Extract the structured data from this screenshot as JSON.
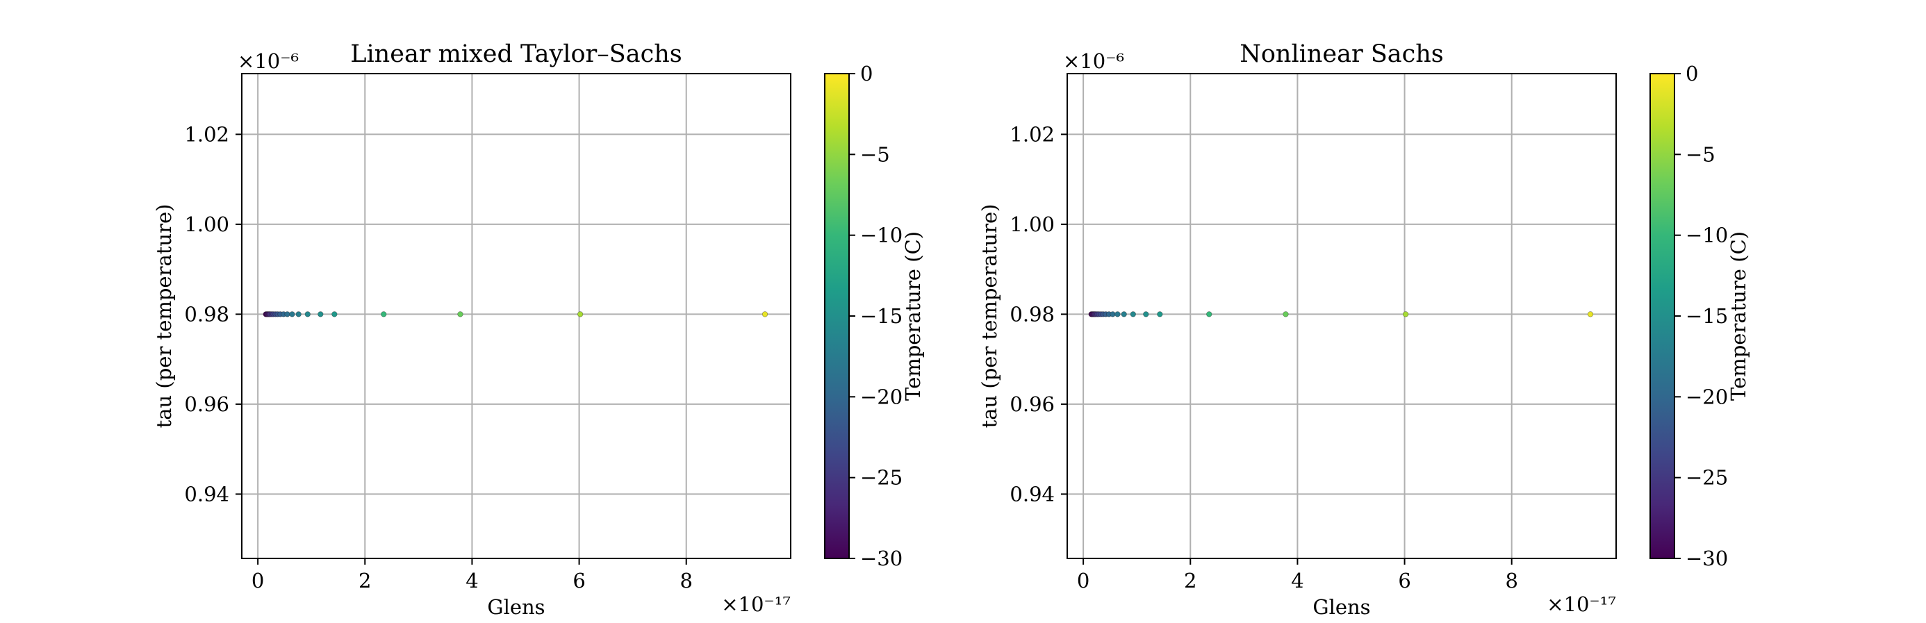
{
  "colormap": {
    "name": "viridis",
    "stops": [
      "#440154",
      "#482878",
      "#3e4989",
      "#31688e",
      "#26828e",
      "#1f9e89",
      "#35b779",
      "#6ece58",
      "#b5de2b",
      "#fde725"
    ]
  },
  "chart_data": [
    {
      "type": "scatter",
      "title": "Linear mixed Taylor–Sachs",
      "xlabel": "Glens",
      "ylabel": "tau (per temperature)",
      "x_offset_label": "×10⁻¹⁷",
      "y_offset_label": "×10⁻⁶",
      "xlim": [
        -0.3,
        9.95
      ],
      "ylim": [
        0.9257,
        1.0335
      ],
      "xticks": [
        0,
        2,
        4,
        6,
        8
      ],
      "xtick_labels": [
        "0",
        "2",
        "4",
        "6",
        "8"
      ],
      "yticks": [
        0.94,
        0.96,
        0.98,
        1.0,
        1.02
      ],
      "ytick_labels": [
        "0.94",
        "0.96",
        "0.98",
        "1.00",
        "1.02"
      ],
      "grid": true,
      "x": [
        0.15,
        0.17,
        0.19,
        0.21,
        0.23,
        0.26,
        0.29,
        0.33,
        0.37,
        0.42,
        0.48,
        0.55,
        0.64,
        0.76,
        0.93,
        1.17,
        1.43,
        2.35,
        3.78,
        6.02,
        9.47
      ],
      "y": [
        0.98,
        0.98,
        0.98,
        0.98,
        0.98,
        0.98,
        0.98,
        0.98,
        0.98,
        0.98,
        0.98,
        0.98,
        0.98,
        0.98,
        0.98,
        0.98,
        0.98,
        0.98,
        0.98,
        0.98,
        0.98
      ],
      "temperature": [
        -30,
        -29,
        -28,
        -27,
        -26,
        -25,
        -24,
        -23,
        -22,
        -21,
        -20,
        -19,
        -18,
        -17,
        -16,
        -15,
        -14,
        -10,
        -7,
        -4,
        -1
      ],
      "colorbar": {
        "label": "Temperature (C)",
        "range": [
          -30,
          0
        ],
        "ticks": [
          0,
          -5,
          -10,
          -15,
          -20,
          -25,
          -30
        ],
        "tick_labels": [
          "0",
          "−5",
          "−10",
          "−15",
          "−20",
          "−25",
          "−30"
        ]
      }
    },
    {
      "type": "scatter",
      "title": "Nonlinear Sachs",
      "xlabel": "Glens",
      "ylabel": "tau (per temperature)",
      "x_offset_label": "×10⁻¹⁷",
      "y_offset_label": "×10⁻⁶",
      "xlim": [
        -0.3,
        9.95
      ],
      "ylim": [
        0.9257,
        1.0335
      ],
      "xticks": [
        0,
        2,
        4,
        6,
        8
      ],
      "xtick_labels": [
        "0",
        "2",
        "4",
        "6",
        "8"
      ],
      "yticks": [
        0.94,
        0.96,
        0.98,
        1.0,
        1.02
      ],
      "ytick_labels": [
        "0.94",
        "0.96",
        "0.98",
        "1.00",
        "1.02"
      ],
      "grid": true,
      "x": [
        0.15,
        0.17,
        0.19,
        0.21,
        0.23,
        0.26,
        0.29,
        0.33,
        0.37,
        0.42,
        0.48,
        0.55,
        0.64,
        0.76,
        0.93,
        1.17,
        1.43,
        2.35,
        3.78,
        6.02,
        9.47
      ],
      "y": [
        0.98,
        0.98,
        0.98,
        0.98,
        0.98,
        0.98,
        0.98,
        0.98,
        0.98,
        0.98,
        0.98,
        0.98,
        0.98,
        0.98,
        0.98,
        0.98,
        0.98,
        0.98,
        0.98,
        0.98,
        0.98
      ],
      "temperature": [
        -30,
        -29,
        -28,
        -27,
        -26,
        -25,
        -24,
        -23,
        -22,
        -21,
        -20,
        -19,
        -18,
        -17,
        -16,
        -15,
        -14,
        -10,
        -7,
        -4,
        -1
      ],
      "colorbar": {
        "label": "Temperature (C)",
        "range": [
          -30,
          0
        ],
        "ticks": [
          0,
          -5,
          -10,
          -15,
          -20,
          -25,
          -30
        ],
        "tick_labels": [
          "0",
          "−5",
          "−10",
          "−15",
          "−20",
          "−25",
          "−30"
        ]
      }
    }
  ]
}
